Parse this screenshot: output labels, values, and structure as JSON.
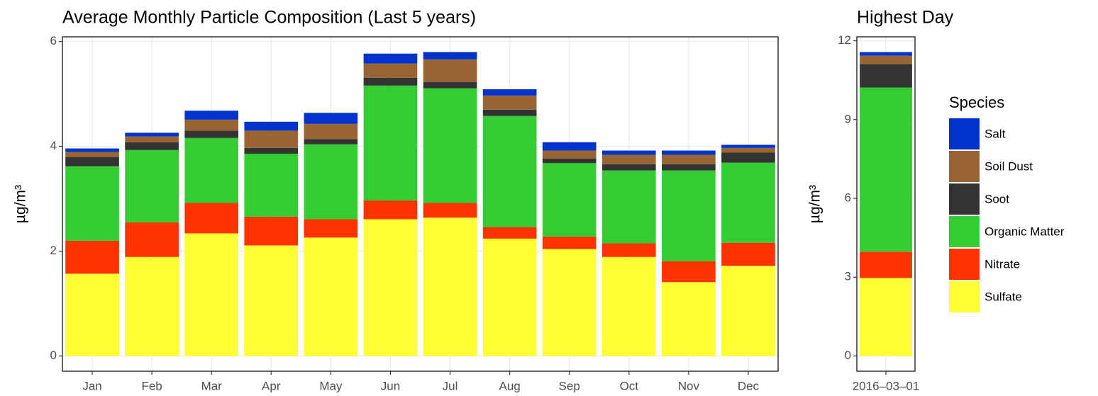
{
  "chart_data": [
    {
      "type": "bar",
      "stacked": true,
      "title": "Average Monthly Particle Composition (Last 5 years)",
      "y_label": "µg/m³",
      "categories": [
        "Jan",
        "Feb",
        "Mar",
        "Apr",
        "May",
        "Jun",
        "Jul",
        "Aug",
        "Sep",
        "Oct",
        "Nov",
        "Dec"
      ],
      "series": [
        {
          "name": "Sulfate",
          "color": "#ffff33",
          "values": [
            1.57,
            1.89,
            2.34,
            2.11,
            2.26,
            2.61,
            2.64,
            2.24,
            2.04,
            1.89,
            1.41,
            1.72
          ]
        },
        {
          "name": "Nitrate",
          "color": "#ff3300",
          "values": [
            0.63,
            0.66,
            0.58,
            0.55,
            0.35,
            0.36,
            0.28,
            0.22,
            0.24,
            0.26,
            0.4,
            0.44
          ]
        },
        {
          "name": "Organic Matter",
          "color": "#33cc33",
          "values": [
            1.42,
            1.38,
            1.24,
            1.2,
            1.43,
            2.19,
            2.19,
            2.12,
            1.4,
            1.39,
            1.73,
            1.53
          ]
        },
        {
          "name": "Soot",
          "color": "#333333",
          "values": [
            0.18,
            0.15,
            0.14,
            0.11,
            0.1,
            0.15,
            0.12,
            0.12,
            0.09,
            0.12,
            0.12,
            0.19
          ]
        },
        {
          "name": "Soil Dust",
          "color": "#996633",
          "values": [
            0.09,
            0.11,
            0.21,
            0.33,
            0.29,
            0.27,
            0.43,
            0.27,
            0.15,
            0.18,
            0.18,
            0.09
          ]
        },
        {
          "name": "Salt",
          "color": "#0033cc",
          "values": [
            0.07,
            0.07,
            0.17,
            0.17,
            0.21,
            0.19,
            0.14,
            0.12,
            0.16,
            0.08,
            0.08,
            0.06
          ]
        }
      ],
      "ylim": [
        -0.29,
        6.09
      ],
      "yticks": [
        0,
        2,
        4,
        6
      ],
      "grid": true,
      "legend_title": "Species",
      "legend": "right"
    },
    {
      "type": "bar",
      "stacked": true,
      "title": "Highest Day",
      "y_label": "µg/m³",
      "categories": [
        "2016–03–01"
      ],
      "series": [
        {
          "name": "Sulfate",
          "color": "#ffff33",
          "values": [
            2.97
          ]
        },
        {
          "name": "Nitrate",
          "color": "#ff3300",
          "values": [
            1.0
          ]
        },
        {
          "name": "Organic Matter",
          "color": "#33cc33",
          "values": [
            6.25
          ]
        },
        {
          "name": "Soot",
          "color": "#333333",
          "values": [
            0.89
          ]
        },
        {
          "name": "Soil Dust",
          "color": "#996633",
          "values": [
            0.32
          ]
        },
        {
          "name": "Salt",
          "color": "#0033cc",
          "values": [
            0.14
          ]
        }
      ],
      "ylim": [
        -0.58,
        12.15
      ],
      "yticks": [
        0,
        3,
        6,
        9,
        12
      ],
      "grid": true
    }
  ]
}
